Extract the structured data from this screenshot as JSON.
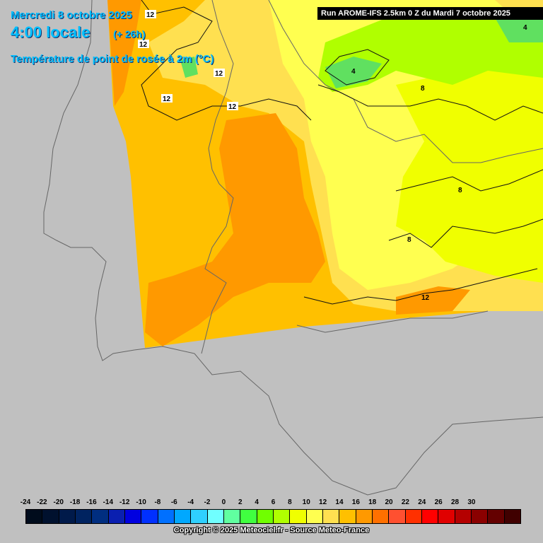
{
  "header": {
    "date": "Mercredi 8 octobre 2025",
    "local_time": "4:00 locale",
    "forecast_offset": "(+ 26h)",
    "parameter": "Température de point de rosée à 2m (°C)"
  },
  "run_info": "Run AROME-IFS 2.5km 0 Z du Mardi 7 octobre 2025",
  "contour_labels": [
    "12",
    "12",
    "12",
    "12",
    "12",
    "4",
    "4",
    "8",
    "8",
    "8",
    "12"
  ],
  "legend": {
    "ticks": [
      "-24",
      "-22",
      "-20",
      "-18",
      "-16",
      "-14",
      "-12",
      "-10",
      "-8",
      "-6",
      "-4",
      "-2",
      "0",
      "2",
      "4",
      "6",
      "8",
      "10",
      "12",
      "14",
      "16",
      "18",
      "20",
      "22",
      "24",
      "26",
      "28",
      "30"
    ],
    "colors": [
      "#000c1c",
      "#00112e",
      "#001a4a",
      "#002360",
      "#002e80",
      "#0a1fb0",
      "#0000e0",
      "#0030ff",
      "#0070ff",
      "#00a8ff",
      "#2fd0ff",
      "#70ffff",
      "#60ffa0",
      "#40ff40",
      "#70ff00",
      "#b0ff00",
      "#f0ff00",
      "#ffff50",
      "#ffe050",
      "#ffc000",
      "#ff9900",
      "#ff7000",
      "#ff5030",
      "#ff3000",
      "#ff0000",
      "#e00000",
      "#b40000",
      "#8a0000",
      "#640000",
      "#400000"
    ]
  },
  "copyright": "Copyright © 2025 Meteociel.fr - Source Meteo-France"
}
